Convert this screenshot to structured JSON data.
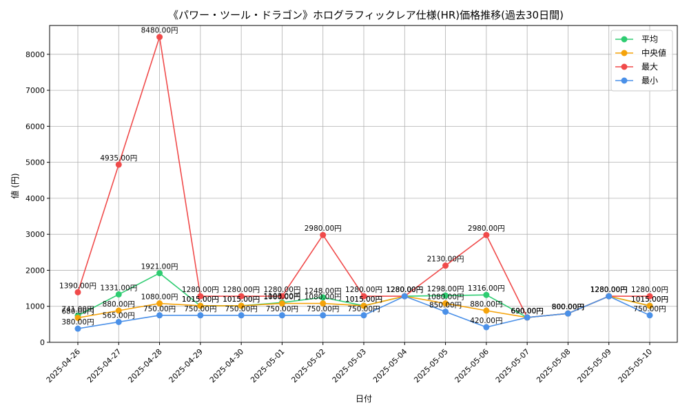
{
  "chart_data": {
    "type": "line",
    "title": "《パワー・ツール・ドラゴン》ホログラフィックレア仕様(HR)価格推移(過去30日間)",
    "xlabel": "日付",
    "ylabel": "値 (円)",
    "ylim": [
      0,
      8800
    ],
    "y_ticks": [
      0,
      1000,
      2000,
      3000,
      4000,
      5000,
      6000,
      7000,
      8000
    ],
    "categories": [
      "2025-04-26",
      "2025-04-27",
      "2025-04-28",
      "2025-04-29",
      "2025-04-30",
      "2025-05-01",
      "2025-05-02",
      "2025-05-03",
      "2025-05-04",
      "2025-05-05",
      "2025-05-06",
      "2025-05-07",
      "2025-05-08",
      "2025-05-09",
      "2025-05-10"
    ],
    "grid": true,
    "legend_position": "top-right",
    "label_suffix": "円",
    "series": [
      {
        "name": "平均",
        "color": "#2ecc71",
        "values": [
          741,
          1331,
          1921,
          1015,
          1015,
          1103,
          1248,
          1015,
          1280,
          1298,
          1316,
          690,
          800,
          1280,
          1015
        ]
      },
      {
        "name": "中央値",
        "color": "#f5a30a",
        "values": [
          680,
          880,
          1080,
          1015,
          1015,
          1080,
          1080,
          1015,
          1280,
          1080,
          880,
          690,
          800,
          1280,
          1015
        ]
      },
      {
        "name": "最大",
        "color": "#f04a4a",
        "values": [
          1390,
          4935,
          8480,
          1280,
          1280,
          1280,
          2980,
          1280,
          1280,
          2130,
          2980,
          690,
          800,
          1280,
          1280
        ]
      },
      {
        "name": "最小",
        "color": "#4a90e8",
        "values": [
          380,
          565,
          750,
          750,
          750,
          750,
          750,
          750,
          1280,
          850,
          420,
          690,
          800,
          1280,
          750
        ]
      }
    ]
  }
}
